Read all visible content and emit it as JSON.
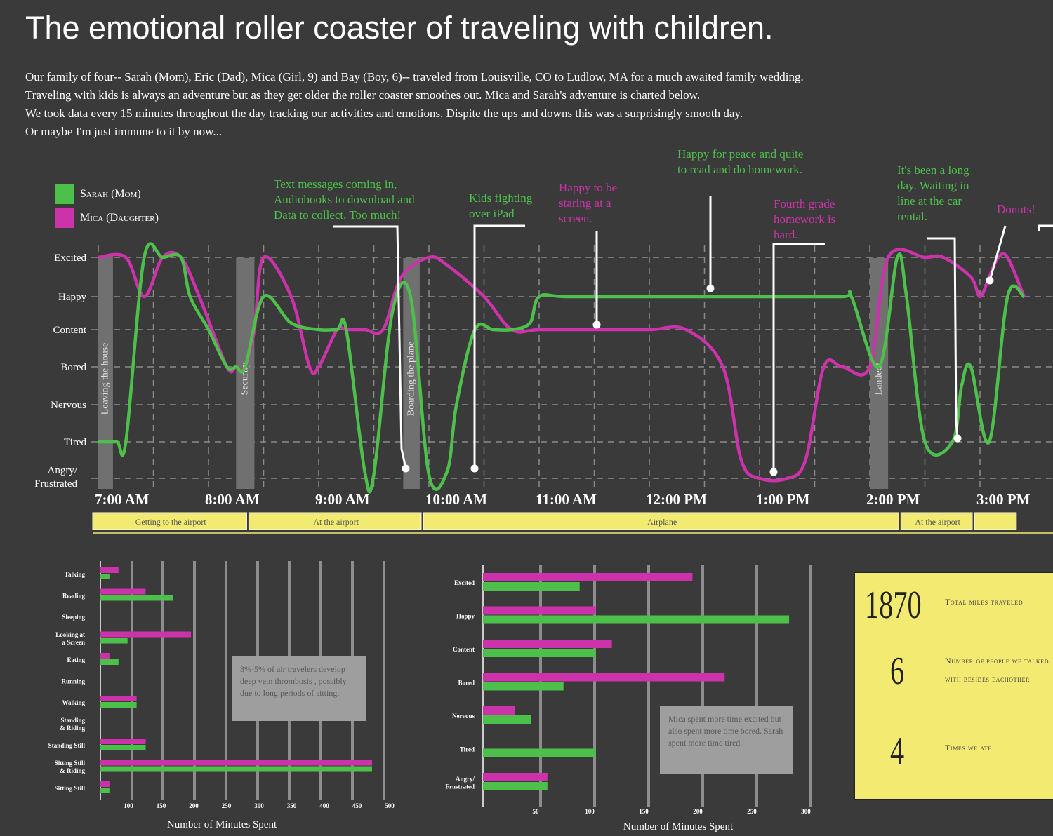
{
  "title": "The emotional roller coaster of traveling with children.",
  "intro": [
    "Our family of four-- Sarah (Mom), Eric (Dad), Mica (Girl, 9) and Bay (Boy, 6)-- traveled from Louisville, CO to Ludlow, MA for a much awaited family wedding.",
    "Traveling with kids is always an adventure but as they get older the roller coaster smoothes out.  Mica and Sarah's adventure is charted below.",
    "We took data every 15 minutes throughout the day tracking our activities and emotions. Dispite the ups and downs this was a surprisingly smooth day.",
    "Or maybe I'm just immune to it by now..."
  ],
  "colors": {
    "background": "#3a3a3a",
    "sarah": "#4cc04a",
    "mica": "#cc33aa",
    "phase_bar": "#f3ea72",
    "event_band": "#707070"
  },
  "legend": [
    {
      "label": "Sarah (Mom)",
      "color": "#4cc04a"
    },
    {
      "label": "Mica (Daughter)",
      "color": "#cc33aa"
    }
  ],
  "chart_data": [
    {
      "type": "line",
      "y_categories": [
        "Angry/ Frustrated",
        "Tired",
        "Nervous",
        "Bored",
        "Content",
        "Happy",
        "Excited"
      ],
      "x_ticks": [
        "7:00 AM",
        "8:00 AM",
        "9:00 AM",
        "10:00 AM",
        "11:00 AM",
        "12:00 PM",
        "1:00 PM",
        "2:00 PM",
        "3:00 PM"
      ],
      "x_range": [
        "7:00",
        "15:24"
      ],
      "grid": true,
      "legend_position": "top-left",
      "series": [
        {
          "name": "Sarah (Mom)",
          "color": "#4cc04a",
          "points": [
            [
              "7:00",
              1
            ],
            [
              "7:10",
              1
            ],
            [
              "7:15",
              1
            ],
            [
              "7:25",
              6
            ],
            [
              "7:35",
              6
            ],
            [
              "7:45",
              6
            ],
            [
              "7:50",
              5
            ],
            [
              "8:00",
              4
            ],
            [
              "8:10",
              3
            ],
            [
              "8:15",
              3
            ],
            [
              "8:20",
              3
            ],
            [
              "8:30",
              5
            ],
            [
              "8:45",
              4.2
            ],
            [
              "9:00",
              4
            ],
            [
              "9:10",
              4
            ],
            [
              "9:15",
              4
            ],
            [
              "9:25",
              0.2
            ],
            [
              "9:30",
              0.1
            ],
            [
              "9:40",
              4.5
            ],
            [
              "9:50",
              5
            ],
            [
              "10:00",
              0.1
            ],
            [
              "10:10",
              0.2
            ],
            [
              "10:15",
              2
            ],
            [
              "10:25",
              4
            ],
            [
              "10:35",
              4
            ],
            [
              "10:45",
              4
            ],
            [
              "10:55",
              4.2
            ],
            [
              "11:00",
              5
            ],
            [
              "11:15",
              5
            ],
            [
              "12:00",
              5
            ],
            [
              "13:00",
              5
            ],
            [
              "13:45",
              5
            ],
            [
              "13:50",
              5
            ],
            [
              "14:05",
              3
            ],
            [
              "14:15",
              6
            ],
            [
              "14:20",
              5
            ],
            [
              "14:30",
              1
            ],
            [
              "14:45",
              1
            ],
            [
              "14:50",
              2.5
            ],
            [
              "14:55",
              3
            ],
            [
              "15:05",
              1
            ],
            [
              "15:15",
              5
            ],
            [
              "15:24",
              5
            ]
          ]
        },
        {
          "name": "Mica (Daughter)",
          "color": "#cc33aa",
          "points": [
            [
              "7:00",
              6
            ],
            [
              "7:15",
              6
            ],
            [
              "7:25",
              5
            ],
            [
              "7:35",
              6
            ],
            [
              "7:45",
              6
            ],
            [
              "7:55",
              5
            ],
            [
              "8:10",
              3
            ],
            [
              "8:15",
              3
            ],
            [
              "8:20",
              3
            ],
            [
              "8:25",
              4
            ],
            [
              "8:30",
              6
            ],
            [
              "8:45",
              5
            ],
            [
              "8:55",
              3
            ],
            [
              "9:00",
              3
            ],
            [
              "9:10",
              4
            ],
            [
              "9:15",
              4
            ],
            [
              "9:25",
              4
            ],
            [
              "9:35",
              4
            ],
            [
              "9:45",
              5.5
            ],
            [
              "10:00",
              6
            ],
            [
              "10:10",
              5.8
            ],
            [
              "10:30",
              5
            ],
            [
              "10:45",
              4
            ],
            [
              "11:00",
              4
            ],
            [
              "11:30",
              4
            ],
            [
              "12:00",
              4
            ],
            [
              "12:20",
              4
            ],
            [
              "12:40",
              3
            ],
            [
              "12:50",
              0.5
            ],
            [
              "13:00",
              0
            ],
            [
              "13:15",
              0
            ],
            [
              "13:25",
              0.5
            ],
            [
              "13:35",
              3
            ],
            [
              "13:45",
              3
            ],
            [
              "14:00",
              3
            ],
            [
              "14:10",
              6
            ],
            [
              "14:30",
              6
            ],
            [
              "14:40",
              6
            ],
            [
              "14:55",
              5.5
            ],
            [
              "15:00",
              5
            ],
            [
              "15:05",
              5.5
            ],
            [
              "15:10",
              6
            ],
            [
              "15:15",
              6
            ],
            [
              "15:24",
              5
            ]
          ]
        }
      ],
      "events": [
        {
          "label": "Leaving the house",
          "start": "7:00",
          "end": "7:08"
        },
        {
          "label": "Security",
          "start": "8:15",
          "end": "8:25"
        },
        {
          "label": "Boarding the plane",
          "start": "9:46",
          "end": "9:55"
        },
        {
          "label": "Landed!",
          "start": "14:00",
          "end": "14:10"
        }
      ],
      "annotations": [
        {
          "text": "Text messages coming in, Audiobooks to download and Data to collect. Too much!",
          "series": "Sarah (Mom)",
          "at": "9:30"
        },
        {
          "text": "Kids fighting over iPad",
          "series": "Sarah (Mom)",
          "at": "10:05"
        },
        {
          "text": "Happy to be staring at a screen.",
          "series": "Mica (Daughter)",
          "at": "11:30"
        },
        {
          "text": "Happy for peace and quite to read and do homework.",
          "series": "Sarah (Mom)",
          "at": "12:15"
        },
        {
          "text": "Fourth grade homework is hard.",
          "series": "Mica (Daughter)",
          "at": "13:20"
        },
        {
          "text": "It's been a long day. Waiting in line at the car rental.",
          "series": "Sarah (Mom)",
          "at": "14:45"
        },
        {
          "text": "Donuts!",
          "series": "Mica (Daughter)",
          "at": "15:00"
        }
      ],
      "phases": [
        {
          "label": "Getting to the airport",
          "start": "7:00",
          "end": "8:25"
        },
        {
          "label": "At the airport",
          "start": "8:25",
          "end": "10:00"
        },
        {
          "label": "Airplane",
          "start": "10:00",
          "end": "14:20"
        },
        {
          "label": "At the airport",
          "start": "14:20",
          "end": "15:00"
        },
        {
          "label": "",
          "start": "15:00",
          "end": "15:24"
        }
      ]
    },
    {
      "type": "bar",
      "orientation": "horizontal",
      "xlabel": "Number of Minutes Spent",
      "x_ticks": [
        100,
        150,
        200,
        250,
        300,
        350,
        400,
        450,
        500
      ],
      "xlim": [
        0,
        500
      ],
      "categories": [
        "Talking",
        "Reading",
        "Sleeping",
        "Looking at a Screen",
        "Eating",
        "Running",
        "Walking",
        "Standing & Riding",
        "Standing Still",
        "Sitting Still & Riding",
        "Sitting Still"
      ],
      "series": [
        {
          "name": "Mica (Daughter)",
          "color": "#cc33aa",
          "values": [
            30,
            75,
            0,
            150,
            15,
            0,
            60,
            0,
            75,
            450,
            15
          ]
        },
        {
          "name": "Sarah (Mom)",
          "color": "#4cc04a",
          "values": [
            15,
            120,
            0,
            45,
            30,
            0,
            60,
            0,
            75,
            450,
            15
          ]
        }
      ],
      "note": "3%-5% of air travelers develop deep vein thrombosis , possibly due to long periods of sitting."
    },
    {
      "type": "bar",
      "orientation": "horizontal",
      "xlabel": "Number of Minutes Spent",
      "x_ticks": [
        50,
        100,
        150,
        200,
        250,
        300
      ],
      "xlim": [
        0,
        300
      ],
      "categories": [
        "Excited",
        "Happy",
        "Content",
        "Bored",
        "Nervous",
        "Tired",
        "Angry/ Frustrated"
      ],
      "series": [
        {
          "name": "Mica (Daughter)",
          "color": "#cc33aa",
          "values": [
            195,
            105,
            120,
            225,
            30,
            0,
            60
          ]
        },
        {
          "name": "Sarah (Mom)",
          "color": "#4cc04a",
          "values": [
            90,
            285,
            105,
            75,
            45,
            105,
            60
          ]
        }
      ],
      "note": "Mica spent more time excited but also spent more time bored. Sarah spent more time tired."
    }
  ],
  "stats": [
    {
      "number": "1870",
      "label": "Total miles traveled"
    },
    {
      "number": "6",
      "label": "Number of people we talked with besides eachother"
    },
    {
      "number": "4",
      "label": "Times we ate"
    }
  ]
}
